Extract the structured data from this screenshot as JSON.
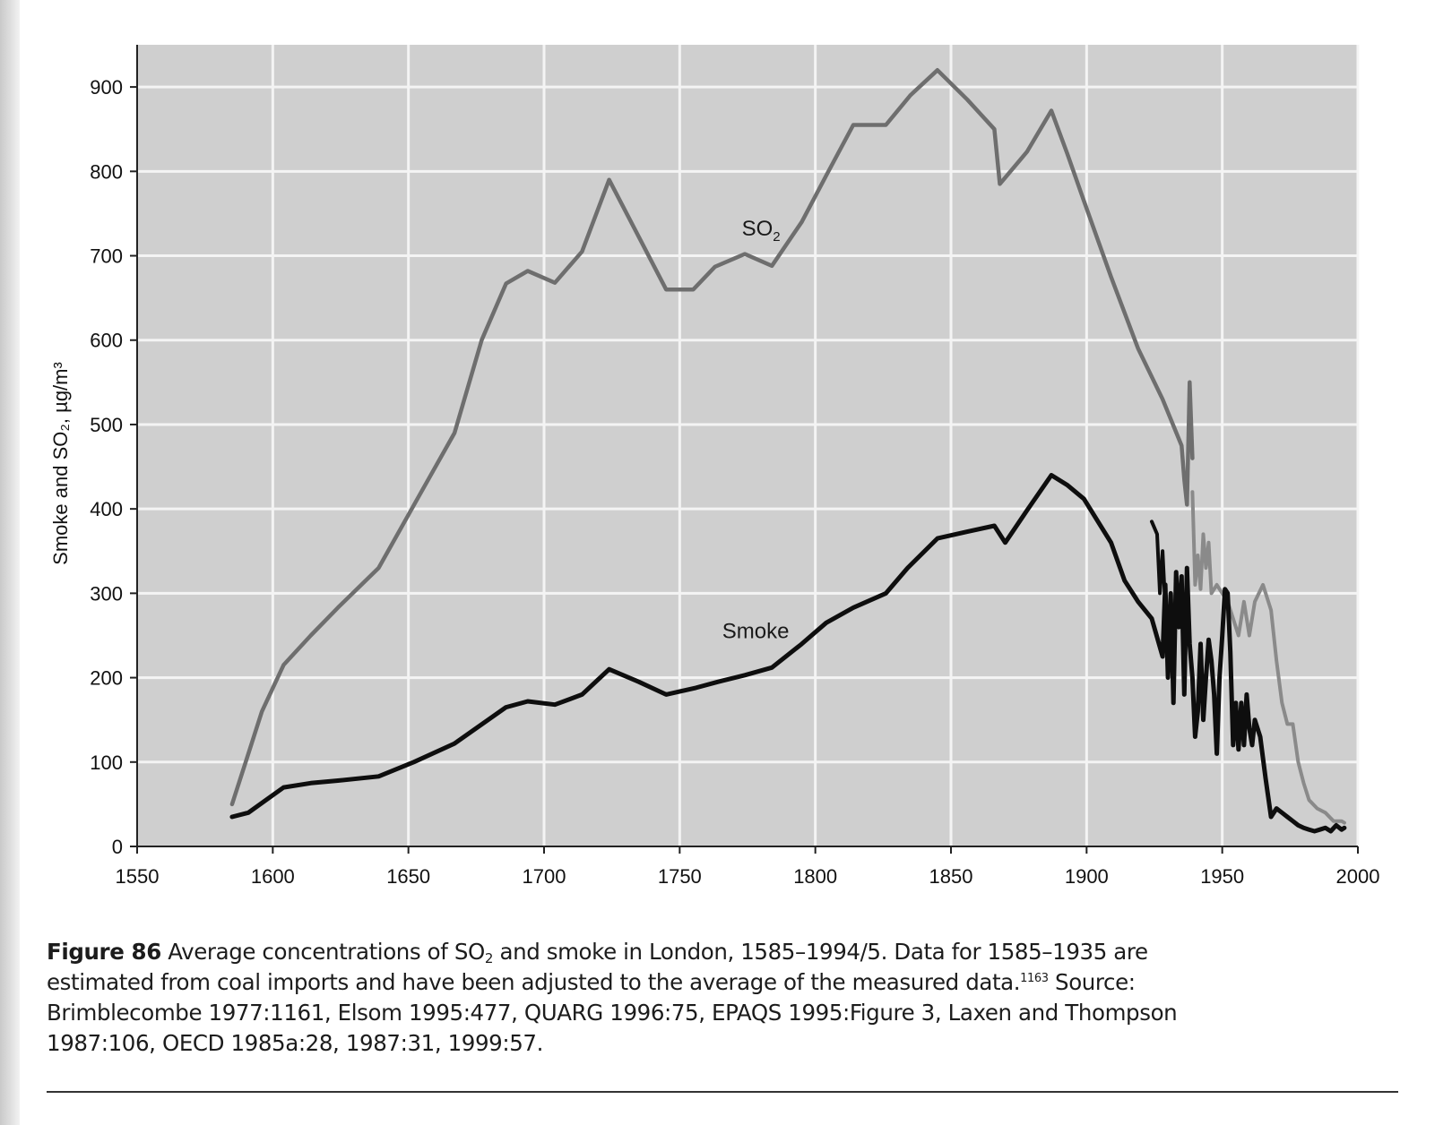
{
  "chart_data": {
    "type": "line",
    "title": "",
    "xlabel": "",
    "ylabel": "Smoke and SO₂, µg/m³",
    "xlim": [
      1550,
      2000
    ],
    "ylim": [
      0,
      950
    ],
    "xticks": [
      1550,
      1600,
      1650,
      1700,
      1750,
      1800,
      1850,
      1900,
      1950,
      2000
    ],
    "yticks": [
      0,
      100,
      200,
      300,
      400,
      500,
      600,
      700,
      800,
      900
    ],
    "grid": true,
    "legend": "none (inline labels)",
    "colors": {
      "plot_bg": "#cfcfcf",
      "grid": "#f4f4f4",
      "so2": "#6e6e6e",
      "so2_measured": "#8a8a8a",
      "smoke": "#0e0e0e"
    },
    "series": [
      {
        "name": "SO₂",
        "label_at": [
          1780,
          724
        ],
        "values": [
          [
            1585,
            50
          ],
          [
            1590,
            100
          ],
          [
            1596,
            160
          ],
          [
            1604,
            215
          ],
          [
            1614,
            250
          ],
          [
            1624,
            283
          ],
          [
            1639,
            330
          ],
          [
            1653,
            410
          ],
          [
            1667,
            490
          ],
          [
            1677,
            600
          ],
          [
            1686,
            667
          ],
          [
            1694,
            682
          ],
          [
            1704,
            668
          ],
          [
            1714,
            705
          ],
          [
            1724,
            790
          ],
          [
            1735,
            722
          ],
          [
            1745,
            660
          ],
          [
            1755,
            660
          ],
          [
            1763,
            687
          ],
          [
            1774,
            702
          ],
          [
            1784,
            688
          ],
          [
            1795,
            740
          ],
          [
            1804,
            795
          ],
          [
            1814,
            855
          ],
          [
            1826,
            855
          ],
          [
            1835,
            890
          ],
          [
            1845,
            920
          ],
          [
            1856,
            885
          ],
          [
            1866,
            850
          ],
          [
            1868,
            785
          ],
          [
            1878,
            823
          ],
          [
            1887,
            872
          ],
          [
            1893,
            820
          ],
          [
            1899,
            765
          ],
          [
            1909,
            675
          ],
          [
            1919,
            590
          ],
          [
            1928,
            530
          ],
          [
            1935,
            475
          ],
          [
            1936,
            435
          ],
          [
            1937,
            405
          ],
          [
            1938,
            550
          ],
          [
            1939,
            460
          ]
        ]
      },
      {
        "name": "SO₂ (measured)",
        "values": [
          [
            1939,
            420
          ],
          [
            1940,
            310
          ],
          [
            1941,
            345
          ],
          [
            1942,
            305
          ],
          [
            1943,
            370
          ],
          [
            1944,
            330
          ],
          [
            1945,
            360
          ],
          [
            1946,
            300
          ],
          [
            1948,
            310
          ],
          [
            1950,
            300
          ],
          [
            1952,
            290
          ],
          [
            1954,
            270
          ],
          [
            1956,
            250
          ],
          [
            1958,
            290
          ],
          [
            1960,
            250
          ],
          [
            1962,
            290
          ],
          [
            1965,
            310
          ],
          [
            1968,
            280
          ],
          [
            1970,
            220
          ],
          [
            1972,
            170
          ],
          [
            1974,
            145
          ],
          [
            1976,
            145
          ],
          [
            1978,
            100
          ],
          [
            1980,
            75
          ],
          [
            1982,
            55
          ],
          [
            1985,
            45
          ],
          [
            1988,
            40
          ],
          [
            1991,
            30
          ],
          [
            1994,
            30
          ],
          [
            1995,
            28
          ]
        ]
      },
      {
        "name": "Smoke",
        "label_at": [
          1778,
          247
        ],
        "values": [
          [
            1585,
            35
          ],
          [
            1591,
            40
          ],
          [
            1604,
            70
          ],
          [
            1614,
            75
          ],
          [
            1624,
            78
          ],
          [
            1639,
            83
          ],
          [
            1652,
            100
          ],
          [
            1667,
            122
          ],
          [
            1686,
            165
          ],
          [
            1694,
            172
          ],
          [
            1704,
            168
          ],
          [
            1714,
            180
          ],
          [
            1724,
            210
          ],
          [
            1735,
            195
          ],
          [
            1745,
            180
          ],
          [
            1756,
            188
          ],
          [
            1764,
            195
          ],
          [
            1774,
            203
          ],
          [
            1784,
            212
          ],
          [
            1795,
            240
          ],
          [
            1804,
            265
          ],
          [
            1814,
            283
          ],
          [
            1826,
            300
          ],
          [
            1834,
            330
          ],
          [
            1845,
            365
          ],
          [
            1856,
            373
          ],
          [
            1866,
            380
          ],
          [
            1870,
            360
          ],
          [
            1878,
            398
          ],
          [
            1887,
            440
          ],
          [
            1893,
            428
          ],
          [
            1899,
            412
          ],
          [
            1909,
            360
          ],
          [
            1914,
            315
          ],
          [
            1919,
            290
          ],
          [
            1924,
            270
          ],
          [
            1928,
            225
          ],
          [
            1929,
            310
          ],
          [
            1930,
            200
          ],
          [
            1931,
            300
          ],
          [
            1932,
            170
          ],
          [
            1933,
            325
          ],
          [
            1934,
            260
          ],
          [
            1935,
            320
          ],
          [
            1936,
            180
          ],
          [
            1937,
            330
          ],
          [
            1938,
            240
          ],
          [
            1939,
            200
          ],
          [
            1940,
            130
          ],
          [
            1941,
            160
          ],
          [
            1942,
            240
          ],
          [
            1943,
            150
          ],
          [
            1944,
            200
          ],
          [
            1945,
            245
          ],
          [
            1946,
            220
          ],
          [
            1947,
            180
          ],
          [
            1948,
            110
          ],
          [
            1949,
            200
          ],
          [
            1950,
            250
          ],
          [
            1951,
            305
          ],
          [
            1952,
            300
          ],
          [
            1953,
            230
          ],
          [
            1954,
            120
          ],
          [
            1955,
            170
          ],
          [
            1956,
            115
          ],
          [
            1957,
            170
          ],
          [
            1958,
            120
          ],
          [
            1959,
            180
          ],
          [
            1960,
            140
          ],
          [
            1961,
            120
          ],
          [
            1962,
            150
          ],
          [
            1964,
            130
          ],
          [
            1966,
            80
          ],
          [
            1968,
            35
          ],
          [
            1970,
            45
          ],
          [
            1972,
            40
          ],
          [
            1974,
            35
          ],
          [
            1976,
            30
          ],
          [
            1978,
            25
          ],
          [
            1980,
            22
          ],
          [
            1982,
            20
          ],
          [
            1984,
            18
          ],
          [
            1986,
            20
          ],
          [
            1988,
            22
          ],
          [
            1990,
            18
          ],
          [
            1992,
            25
          ],
          [
            1994,
            20
          ],
          [
            1995,
            22
          ]
        ]
      },
      {
        "name": "Smoke (measured)",
        "values": [
          [
            1924,
            385
          ],
          [
            1926,
            370
          ],
          [
            1927,
            300
          ],
          [
            1928,
            350
          ],
          [
            1929,
            285
          ],
          [
            1930,
            220
          ],
          [
            1931,
            300
          ]
        ]
      }
    ]
  },
  "caption": {
    "figure_label": "Figure 86",
    "line1_a": " Average concentrations of SO",
    "line1_sub": "2",
    "line1_b": " and smoke in London, 1585–1994/5. Data for 1585–1935 are",
    "line2_a": "estimated from coal imports and have been adjusted to the average of the measured data.",
    "line2_sup": "1163",
    "line2_b": " Source:",
    "line3": "Brimblecombe 1977:1161, Elsom 1995:477, QUARG 1996:75, EPAQS 1995:Figure 3, Laxen and Thompson",
    "line4": "1987:106, OECD 1985a:28, 1987:31, 1999:57."
  }
}
